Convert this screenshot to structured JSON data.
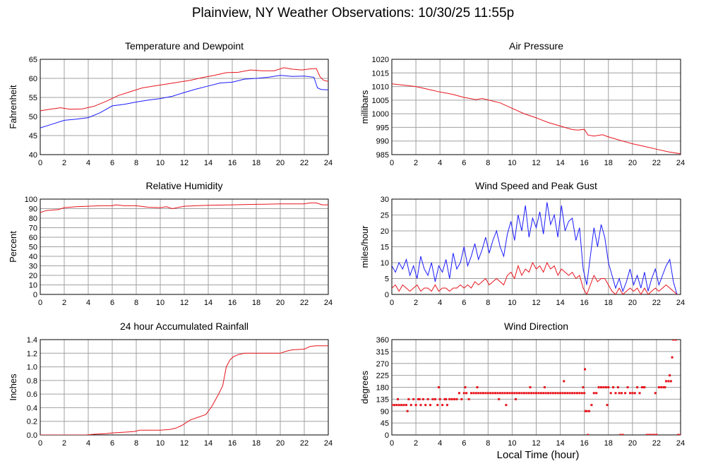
{
  "page": {
    "title": "Plainview, NY Weather Observations: 10/30/25 11:55p",
    "xlabel": "Local Time (hour)"
  },
  "colors": {
    "red": "#e8141c",
    "blue": "#1a1aff",
    "grid": "#a0a0a0"
  },
  "chart_data": [
    {
      "id": "temp",
      "type": "line",
      "title": "Temperature and Dewpoint",
      "ylabel": "Fahrenheit",
      "xlim": [
        0,
        24
      ],
      "ylim": [
        40,
        65
      ],
      "xticks": [
        0,
        2,
        4,
        6,
        8,
        10,
        12,
        14,
        16,
        18,
        20,
        22,
        24
      ],
      "yticks": [
        40,
        45,
        50,
        55,
        60,
        65
      ],
      "grid": true,
      "series": [
        {
          "color": "red",
          "x": [
            0,
            1,
            1.7,
            2.5,
            3.5,
            4.5,
            5.5,
            6.5,
            7.5,
            8.5,
            9.5,
            10.5,
            11.5,
            12.5,
            13.5,
            14.5,
            15.5,
            16.5,
            17.5,
            18.5,
            19.5,
            20.3,
            21,
            21.8,
            22.5,
            23,
            23.3,
            23.6,
            24
          ],
          "y": [
            51.5,
            52,
            52.3,
            51.9,
            52,
            52.7,
            54,
            55.5,
            56.5,
            57.5,
            58,
            58.5,
            59,
            59.5,
            60.2,
            60.8,
            61.5,
            61.6,
            62.2,
            62,
            62,
            62.8,
            62.4,
            62.2,
            62.5,
            62.6,
            60.5,
            59.5,
            59.2
          ]
        },
        {
          "color": "blue",
          "x": [
            0,
            1,
            2,
            3,
            4,
            5,
            6,
            7,
            8,
            9,
            10,
            11,
            12,
            13,
            14,
            15,
            16,
            17,
            18,
            19,
            20,
            21,
            22,
            22.8,
            23.1,
            23.4,
            24
          ],
          "y": [
            47,
            48,
            49,
            49.3,
            49.7,
            51,
            52.8,
            53.2,
            53.8,
            54.3,
            54.7,
            55.3,
            56.3,
            57.2,
            58,
            58.8,
            59,
            59.8,
            60,
            60.3,
            60.8,
            60.5,
            60.6,
            60.3,
            57.5,
            57.1,
            57
          ]
        }
      ]
    },
    {
      "id": "pressure",
      "type": "line",
      "title": "Air Pressure",
      "ylabel": "millibars",
      "xlim": [
        0,
        24
      ],
      "ylim": [
        985,
        1020
      ],
      "xticks": [
        0,
        2,
        4,
        6,
        8,
        10,
        12,
        14,
        16,
        18,
        20,
        22,
        24
      ],
      "yticks": [
        985,
        990,
        995,
        1000,
        1005,
        1010,
        1015,
        1020
      ],
      "grid": true,
      "series": [
        {
          "color": "red",
          "x": [
            0,
            1,
            2,
            3,
            4,
            5,
            6,
            7,
            7.5,
            8,
            9,
            10,
            11,
            12,
            13,
            14,
            15,
            15.5,
            16,
            16.3,
            16.8,
            17.5,
            18,
            19,
            20,
            21,
            22,
            23,
            24
          ],
          "y": [
            1011,
            1010.5,
            1010,
            1009,
            1008,
            1007.2,
            1006,
            1005.2,
            1005.6,
            1005.1,
            1004,
            1002,
            1000,
            998.5,
            996.8,
            995.5,
            994.2,
            994,
            994.3,
            992.2,
            991.8,
            992.3,
            991.5,
            990.2,
            989,
            988,
            987,
            986,
            985.3
          ]
        }
      ]
    },
    {
      "id": "humidity",
      "type": "line",
      "title": "Relative Humidity",
      "ylabel": "Percent",
      "xlim": [
        0,
        24
      ],
      "ylim": [
        0,
        100
      ],
      "xticks": [
        0,
        2,
        4,
        6,
        8,
        10,
        12,
        14,
        16,
        18,
        20,
        22,
        24
      ],
      "yticks": [
        0,
        10,
        20,
        30,
        40,
        50,
        60,
        70,
        80,
        90,
        100
      ],
      "grid": true,
      "series": [
        {
          "color": "red",
          "x": [
            0,
            0.5,
            1,
            1.5,
            2,
            3,
            4,
            5,
            6,
            6.3,
            7,
            8,
            9,
            10,
            10.5,
            11,
            12,
            13,
            14,
            16,
            18,
            20,
            22,
            22.5,
            23,
            23.5,
            24
          ],
          "y": [
            86,
            88,
            88.5,
            89,
            91,
            92,
            92.5,
            93,
            93,
            94,
            93,
            93,
            91.5,
            91,
            92,
            90,
            92.5,
            93,
            93.5,
            94,
            94.5,
            95,
            95,
            96,
            96,
            94,
            94
          ]
        }
      ]
    },
    {
      "id": "wind",
      "type": "line",
      "title": "Wind Speed and Peak Gust",
      "ylabel": "miles/hour",
      "xlim": [
        0,
        24
      ],
      "ylim": [
        0,
        30
      ],
      "xticks": [
        0,
        2,
        4,
        6,
        8,
        10,
        12,
        14,
        16,
        18,
        20,
        22,
        24
      ],
      "yticks": [
        0,
        5,
        10,
        15,
        20,
        25,
        30
      ],
      "grid": true,
      "series": [
        {
          "color": "blue",
          "x": [
            0,
            0.3,
            0.6,
            0.9,
            1.2,
            1.5,
            1.8,
            2.1,
            2.4,
            2.7,
            3,
            3.3,
            3.6,
            3.9,
            4.2,
            4.5,
            4.8,
            5.1,
            5.4,
            5.7,
            6,
            6.3,
            6.6,
            6.9,
            7.2,
            7.5,
            7.8,
            8.1,
            8.4,
            8.7,
            9,
            9.3,
            9.6,
            9.9,
            10.2,
            10.5,
            10.8,
            11.1,
            11.4,
            11.7,
            12,
            12.3,
            12.6,
            12.9,
            13.2,
            13.5,
            13.8,
            14.1,
            14.4,
            14.7,
            15,
            15.3,
            15.6,
            15.9,
            16.2,
            16.5,
            16.8,
            17.1,
            17.4,
            17.7,
            18,
            18.3,
            18.6,
            18.9,
            19.2,
            19.5,
            19.8,
            20.1,
            20.4,
            20.7,
            21,
            21.3,
            21.6,
            21.9,
            22.2,
            22.5,
            22.8,
            23.1,
            23.4,
            23.7
          ],
          "y": [
            9,
            7,
            10,
            8,
            11,
            6,
            9,
            5,
            12,
            8,
            6,
            10,
            4,
            9,
            7,
            11,
            5,
            13,
            8,
            10,
            15,
            9,
            12,
            16,
            11,
            14,
            18,
            13,
            17,
            20,
            15,
            12,
            19,
            23,
            17,
            25,
            20,
            28,
            18,
            24,
            21,
            26,
            19,
            29,
            22,
            25,
            18,
            28,
            20,
            23,
            24,
            17,
            21,
            8,
            3,
            12,
            21,
            15,
            22,
            18,
            10,
            6,
            2,
            5,
            1,
            4,
            8,
            3,
            6,
            2,
            7,
            1,
            5,
            8,
            3,
            6,
            9,
            11,
            4,
            0
          ]
        },
        {
          "color": "red",
          "x": [
            0,
            0.3,
            0.6,
            0.9,
            1.2,
            1.5,
            1.8,
            2.1,
            2.4,
            2.7,
            3,
            3.3,
            3.6,
            3.9,
            4.2,
            4.5,
            4.8,
            5.1,
            5.4,
            5.7,
            6,
            6.3,
            6.6,
            6.9,
            7.2,
            7.5,
            7.8,
            8.1,
            8.4,
            8.7,
            9,
            9.3,
            9.6,
            9.9,
            10.2,
            10.5,
            10.8,
            11.1,
            11.4,
            11.7,
            12,
            12.3,
            12.6,
            12.9,
            13.2,
            13.5,
            13.8,
            14.1,
            14.4,
            14.7,
            15,
            15.3,
            15.6,
            15.9,
            16.2,
            16.5,
            16.8,
            17.1,
            17.4,
            17.7,
            18,
            18.3,
            18.6,
            18.9,
            19.2,
            19.5,
            19.8,
            20.1,
            20.4,
            20.7,
            21,
            21.3,
            21.6,
            21.9,
            22.2,
            22.5,
            22.8,
            23.1,
            23.4,
            23.7
          ],
          "y": [
            2,
            3,
            1,
            3,
            2,
            1,
            2,
            3,
            1,
            2,
            2,
            1,
            3,
            1,
            2,
            2,
            1,
            2,
            2,
            3,
            2,
            3,
            2,
            4,
            3,
            4,
            5,
            3,
            4,
            5,
            4,
            3,
            6,
            7,
            5,
            9,
            6,
            8,
            7,
            10,
            8,
            9,
            7,
            10,
            8,
            9,
            6,
            8,
            7,
            6,
            7,
            5,
            6,
            2,
            0,
            3,
            6,
            4,
            5,
            5,
            3,
            1,
            0,
            2,
            0,
            1,
            2,
            1,
            2,
            0,
            2,
            0,
            1,
            2,
            1,
            2,
            3,
            2,
            1,
            0
          ]
        }
      ]
    },
    {
      "id": "rain",
      "type": "line",
      "title": "24 hour Accumulated Rainfall",
      "ylabel": "Inches",
      "xlim": [
        0,
        24
      ],
      "ylim": [
        0,
        1.4
      ],
      "xticks": [
        0,
        2,
        4,
        6,
        8,
        10,
        12,
        14,
        16,
        18,
        20,
        22,
        24
      ],
      "yticks": [
        0.0,
        0.2,
        0.4,
        0.6,
        0.8,
        1.0,
        1.2,
        1.4
      ],
      "grid": true,
      "series": [
        {
          "color": "red",
          "x": [
            0,
            3.8,
            4.5,
            5.5,
            6,
            7,
            7.8,
            8.3,
            9,
            10,
            10.8,
            11.3,
            11.8,
            12.5,
            13,
            13.8,
            14.3,
            14.8,
            15.2,
            15.5,
            15.8,
            16.1,
            16.5,
            17,
            17.5,
            18,
            19,
            20,
            20.5,
            21,
            22,
            22.5,
            23,
            24
          ],
          "y": [
            0,
            0,
            0.01,
            0.02,
            0.03,
            0.04,
            0.05,
            0.07,
            0.07,
            0.07,
            0.08,
            0.1,
            0.14,
            0.22,
            0.25,
            0.3,
            0.42,
            0.58,
            0.72,
            1.0,
            1.1,
            1.15,
            1.18,
            1.2,
            1.2,
            1.2,
            1.2,
            1.2,
            1.23,
            1.25,
            1.26,
            1.3,
            1.31,
            1.31
          ]
        }
      ]
    },
    {
      "id": "winddir",
      "type": "scatter",
      "title": "Wind Direction",
      "ylabel": "degrees",
      "xlim": [
        0,
        24
      ],
      "ylim": [
        0,
        360
      ],
      "xticks": [
        0,
        2,
        4,
        6,
        8,
        10,
        12,
        14,
        16,
        18,
        20,
        22,
        24
      ],
      "yticks": [
        0,
        45,
        90,
        135,
        180,
        225,
        270,
        315,
        360
      ],
      "grid": true,
      "series": [
        {
          "color": "red",
          "x": [
            0,
            0.2,
            0.4,
            0.6,
            0.8,
            1,
            1.2,
            1.4,
            1.6,
            1.8,
            2,
            2.2,
            2.4,
            2.6,
            2.8,
            3,
            3.2,
            3.4,
            3.6,
            3.8,
            4,
            4.2,
            4.4,
            4.6,
            4.8,
            5,
            5.2,
            5.4,
            5.6,
            5.8,
            6,
            6.2,
            6.4,
            6.6,
            6.8,
            7,
            7.2,
            7.4,
            7.6,
            7.8,
            8,
            8.2,
            8.4,
            8.6,
            8.8,
            9,
            9.2,
            9.4,
            9.6,
            9.8,
            10,
            10.2,
            10.4,
            10.6,
            10.8,
            11,
            11.2,
            11.4,
            11.6,
            11.8,
            12,
            12.2,
            12.4,
            12.6,
            12.8,
            13,
            13.2,
            13.4,
            13.6,
            13.8,
            14,
            14.2,
            14.4,
            14.6,
            14.8,
            15,
            15.2,
            15.4,
            15.6,
            15.8,
            16,
            16.1,
            16.2,
            16.4,
            16.6,
            16.8,
            17,
            17.2,
            17.4,
            17.6,
            17.8,
            18,
            18.2,
            18.4,
            18.6,
            18.8,
            19,
            19.2,
            19.4,
            19.6,
            19.8,
            20,
            20.2,
            20.4,
            20.6,
            20.8,
            21,
            21.2,
            21.4,
            21.6,
            21.8,
            22,
            22.2,
            22.4,
            22.6,
            22.8,
            23,
            23.2,
            23.4,
            23.6,
            23.8,
            24,
            0.5,
            1.3,
            2.3,
            3.9,
            4.5,
            6.1,
            7.1,
            8.9,
            9.5,
            10.3,
            11.5,
            12.7,
            14.3,
            15.9,
            16.05,
            16.3,
            17.9,
            18.9,
            19.1,
            20.9,
            21.9,
            22.7,
            23.1,
            23.3
          ],
          "y": [
            113,
            113,
            113,
            113,
            113,
            113,
            113,
            135,
            113,
            135,
            113,
            135,
            113,
            135,
            113,
            135,
            113,
            135,
            135,
            113,
            135,
            113,
            135,
            113,
            135,
            135,
            135,
            135,
            158,
            135,
            158,
            158,
            135,
            158,
            158,
            158,
            158,
            158,
            158,
            158,
            158,
            158,
            158,
            158,
            158,
            158,
            158,
            158,
            158,
            158,
            158,
            158,
            158,
            158,
            158,
            158,
            158,
            158,
            158,
            158,
            158,
            158,
            158,
            158,
            158,
            158,
            158,
            158,
            158,
            158,
            158,
            158,
            158,
            158,
            158,
            158,
            158,
            158,
            158,
            158,
            158,
            90,
            90,
            90,
            113,
            158,
            158,
            180,
            180,
            180,
            180,
            180,
            158,
            180,
            158,
            180,
            0,
            0,
            158,
            180,
            158,
            158,
            158,
            180,
            158,
            180,
            180,
            0,
            0,
            0,
            0,
            0,
            180,
            180,
            180,
            203,
            203,
            203,
            360,
            360,
            0,
            0,
            135,
            90,
            135,
            180,
            135,
            180,
            180,
            135,
            113,
            135,
            180,
            180,
            203,
            180,
            248,
            0,
            113,
            158,
            158,
            180,
            158,
            180,
            225,
            293
          ]
        }
      ]
    }
  ]
}
